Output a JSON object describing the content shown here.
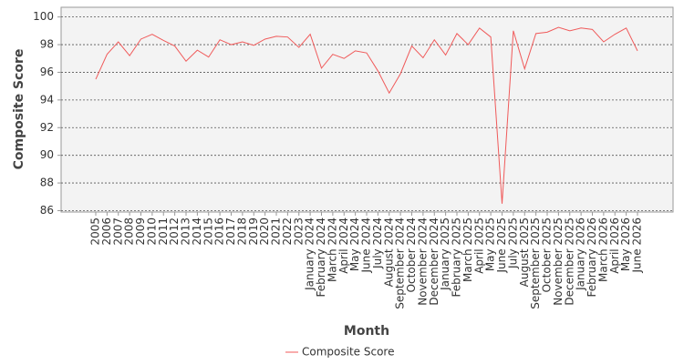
{
  "chart_data": {
    "type": "line",
    "x_label": "Month",
    "y_label": "Composite Score",
    "categories": [
      "2005",
      "2006",
      "2007",
      "2008",
      "2009",
      "2010",
      "2011",
      "2012",
      "2013",
      "2014",
      "2015",
      "2016",
      "2017",
      "2018",
      "2019",
      "2020",
      "2021",
      "2022",
      "2023",
      "January 2024",
      "February 2024",
      "March 2024",
      "April 2024",
      "May 2024",
      "June 2024",
      "July 2024",
      "August 2024",
      "September 2024",
      "October 2024",
      "November 2024",
      "December 2024",
      "January 2025",
      "February 2025",
      "March 2025",
      "April 2025",
      "May 2025",
      "June 2025",
      "July 2025",
      "August 2025",
      "September 2025",
      "October 2025",
      "November 2025",
      "December 2025",
      "January 2026",
      "February 2026",
      "March 2026",
      "April 2026",
      "May 2026",
      "June 2026"
    ],
    "series": [
      {
        "name": "Composite Score",
        "color": "#f05a5a",
        "values": [
          95.5,
          97.3,
          98.2,
          97.2,
          98.4,
          98.75,
          98.3,
          97.9,
          96.8,
          97.6,
          97.1,
          98.35,
          98.0,
          98.2,
          97.95,
          98.4,
          98.6,
          98.55,
          97.8,
          98.75,
          96.3,
          97.3,
          97.0,
          97.55,
          97.4,
          96.1,
          94.5,
          95.9,
          97.9,
          97.05,
          98.35,
          97.25,
          98.8,
          98.0,
          99.2,
          98.55,
          86.5,
          99.0,
          96.25,
          98.8,
          98.9,
          99.25,
          99.0,
          99.2,
          99.1,
          98.2,
          98.75,
          99.2,
          97.55
        ]
      }
    ],
    "ylim": [
      85.9,
      100.7
    ],
    "yticks": [
      86,
      88,
      90,
      92,
      94,
      96,
      98,
      100
    ],
    "grid": true
  }
}
